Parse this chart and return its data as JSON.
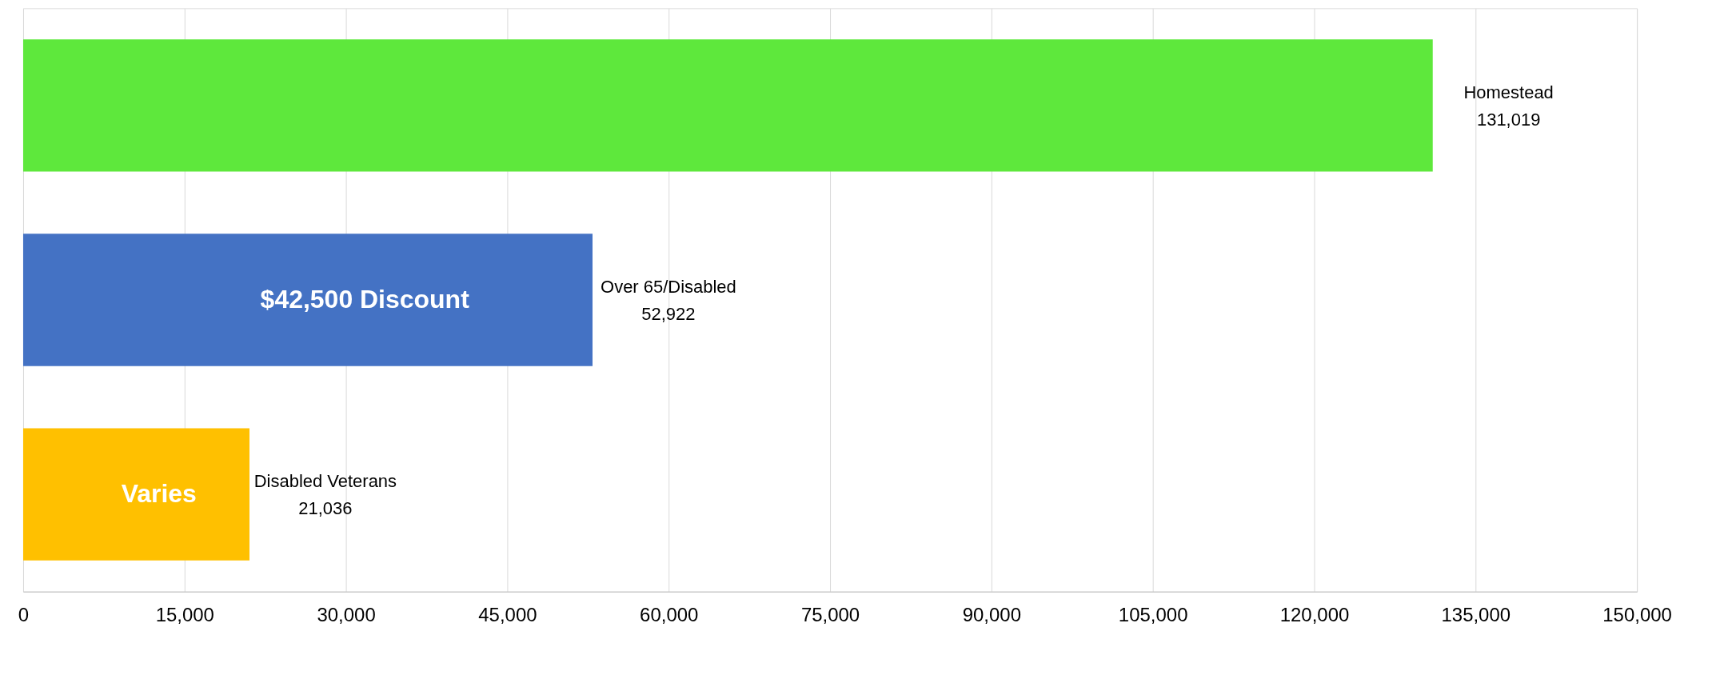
{
  "chart_data": {
    "type": "bar",
    "orientation": "horizontal",
    "categories": [
      "Homestead",
      "Over 65/Disabled",
      "Disabled Veterans"
    ],
    "values": [
      131019,
      52922,
      21036
    ],
    "colors": [
      "#5ee83c",
      "#4472c4",
      "#ffc000"
    ],
    "value_labels": [
      "131,019",
      "52,922",
      "21,036"
    ],
    "xlim": [
      0,
      150000
    ],
    "xticks": [
      {
        "value": 0,
        "label": "0"
      },
      {
        "value": 15000,
        "label": "15,000"
      },
      {
        "value": 30000,
        "label": "30,000"
      },
      {
        "value": 45000,
        "label": "45,000"
      },
      {
        "value": 60000,
        "label": "60,000"
      },
      {
        "value": 75000,
        "label": "75,000"
      },
      {
        "value": 90000,
        "label": "90,000"
      },
      {
        "value": 105000,
        "label": "105,000"
      },
      {
        "value": 120000,
        "label": "120,000"
      },
      {
        "value": 135000,
        "label": "135,000"
      },
      {
        "value": 150000,
        "label": "150,000"
      }
    ],
    "annotations": [
      "$42,500 Discount",
      "Varies"
    ],
    "grid": "x",
    "tick_labels": "x"
  }
}
